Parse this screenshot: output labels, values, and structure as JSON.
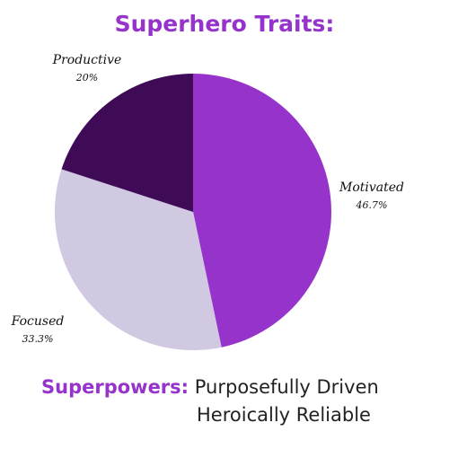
{
  "colors": {
    "accent": "#9533cb",
    "dark_purple": "#3f0a56",
    "lavender": "#d1c8e1"
  },
  "chart_data": {
    "type": "pie",
    "title": "Superhero Traits:",
    "start_angle_deg": 0,
    "direction": "clockwise",
    "slices": [
      {
        "label": "Motivated",
        "value": 46.7,
        "pct_label": "46.7%",
        "color": "#9533cb"
      },
      {
        "label": "Focused",
        "value": 33.3,
        "pct_label": "33.3%",
        "color": "#d1c8e1"
      },
      {
        "label": "Productive",
        "value": 20,
        "pct_label": "20%",
        "color": "#3f0a56"
      }
    ]
  },
  "footer": {
    "heading": "Superpowers:",
    "line1": "Purposefully Driven",
    "line2": "Heroically Reliable"
  }
}
